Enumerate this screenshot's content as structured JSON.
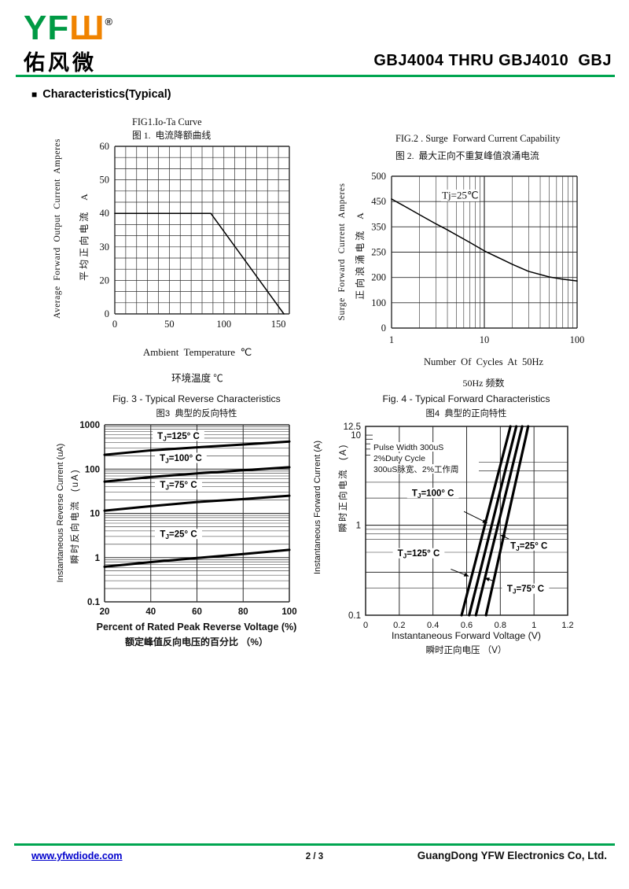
{
  "header": {
    "logo_text_left": "YF",
    "logo_text_right": "Ш",
    "logo_reg": "®",
    "logo_cn": "佑风微",
    "part_title": "GBJ4004 THRU GBJ4010  GBJ"
  },
  "section": {
    "bullet": "■",
    "heading": "Characteristics(Typical)"
  },
  "footer": {
    "website": "www.yfwdiode.com",
    "page": "2 / 3",
    "company": "GuangDong YFW Electronics Co, Ltd."
  },
  "colors": {
    "accent_green": "#00A550",
    "link_blue": "#0000CC",
    "ink": "#111111"
  },
  "chart_data": [
    {
      "id": "fig1",
      "type": "line",
      "title_en": "FIG1.Io-Ta Curve",
      "title_cn": "图 1.  电流降额曲线",
      "ylabel_en": "Average  Forward  Output  Current  Amperes",
      "ylabel_cn": "平均正向电流  A",
      "xlabel_en": "Ambient  Temperature  ℃",
      "xlabel_cn": "环境温度 ℃",
      "x_scale": "linear",
      "x_range": [
        0,
        160
      ],
      "x_grid_step": 10,
      "x_ticks": [
        "0",
        "50",
        "100",
        "150"
      ],
      "y_tick_labels": [
        "60",
        "50",
        "40",
        "30",
        "20",
        "0"
      ],
      "grid": true,
      "series": [
        {
          "name": "output-current-derating",
          "points": [
            [
              0,
              40
            ],
            [
              88,
              40
            ],
            [
              155,
              0
            ]
          ]
        }
      ]
    },
    {
      "id": "fig2",
      "type": "line",
      "title_en": "FIG.2 . Surge  Forward Current Capability",
      "title_cn": "图 2.  最大正向不重复峰值浪涌电流",
      "ylabel_en": "Surge  Forward  Current  Amperes",
      "ylabel_cn": "正向浪涌电流  A",
      "xlabel_en": "Number  Of  Cycles  At  50Hz",
      "xlabel_cn": "50Hz 频数",
      "x_scale": "log",
      "x_range": [
        1,
        100
      ],
      "x_ticks": [
        "1",
        "10",
        "100"
      ],
      "y_tick_labels": [
        "500",
        "450",
        "350",
        "250",
        "200",
        "100",
        "0"
      ],
      "annotation": "Tj=25℃",
      "annotation_at": [
        5.5,
        462
      ],
      "grid": true,
      "series": [
        {
          "name": "surge-current",
          "points": [
            [
              1,
              455
            ],
            [
              1.5,
              424
            ],
            [
              2,
              398
            ],
            [
              3,
              362
            ],
            [
              4,
              338
            ],
            [
              5,
              318
            ],
            [
              7,
              288
            ],
            [
              10,
              255
            ],
            [
              15,
              237
            ],
            [
              20,
              226
            ],
            [
              30,
              212
            ],
            [
              50,
              201
            ],
            [
              70,
              193
            ],
            [
              100,
              186
            ]
          ]
        }
      ]
    },
    {
      "id": "fig3",
      "type": "line",
      "title_en": "Fig. 3 - Typical Reverse Characteristics",
      "title_cn": "图3  典型的反向特性",
      "ylabel_en": "Instantaneous Reverse Current (uA)",
      "ylabel_cn": "瞬时反向电流  (uA)",
      "xlabel_en": "Percent of Rated Peak Reverse Voltage (%)",
      "xlabel_cn": "额定峰值反向电压的百分比 （%）",
      "x_scale": "linear",
      "x_range": [
        20,
        100
      ],
      "x_ticks": [
        "20",
        "40",
        "60",
        "80",
        "100"
      ],
      "y_scale": "log",
      "y_range": [
        0.1,
        1000
      ],
      "y_ticks": [
        "1000",
        "100",
        "10",
        "1",
        "0.1"
      ],
      "grid": true,
      "series": [
        {
          "name": "TJ=125° C",
          "points": [
            [
              20,
              210
            ],
            [
              40,
              265
            ],
            [
              60,
              310
            ],
            [
              80,
              360
            ],
            [
              100,
              420
            ]
          ],
          "label_at": [
            52,
            480
          ]
        },
        {
          "name": "TJ=100° C",
          "points": [
            [
              20,
              52
            ],
            [
              40,
              66
            ],
            [
              60,
              80
            ],
            [
              80,
              94
            ],
            [
              100,
              110
            ]
          ],
          "label_at": [
            53,
            152
          ]
        },
        {
          "name": "TJ=75° C",
          "points": [
            [
              20,
              11.5
            ],
            [
              40,
              14.5
            ],
            [
              60,
              18
            ],
            [
              80,
              21
            ],
            [
              100,
              25
            ]
          ],
          "label_at": [
            52,
            38
          ]
        },
        {
          "name": "TJ=25° C",
          "points": [
            [
              20,
              0.62
            ],
            [
              40,
              0.79
            ],
            [
              60,
              0.98
            ],
            [
              80,
              1.2
            ],
            [
              100,
              1.5
            ]
          ],
          "label_at": [
            52,
            2.9
          ]
        }
      ]
    },
    {
      "id": "fig4",
      "type": "line",
      "title_en": "Fig. 4 - Typical Forward Characteristics",
      "title_cn": "图4  典型的正向特性",
      "ylabel_en": "Instantaneous Forward Current (A)",
      "ylabel_cn": "瞬时正向电流  (A)",
      "xlabel_en": "Instantaneous Forward Voltage (V)",
      "xlabel_cn": "瞬时正向电压 （V）",
      "x_scale": "linear",
      "x_range": [
        0,
        1.2
      ],
      "x_ticks": [
        "0",
        "0.2",
        "0.4",
        "0.6",
        "0.8",
        "1",
        "1.2"
      ],
      "y_scale": "log",
      "y_range": [
        0.1,
        12.5
      ],
      "y_ticks": [
        {
          "label": "12.5",
          "value": 12.5
        },
        {
          "label": "10",
          "value": 10
        },
        {
          "label": "1",
          "value": 1
        },
        {
          "label": "0.1",
          "value": 0.1
        }
      ],
      "test_conditions": [
        "Pulse Width 300uS",
        "2%Duty Cycle",
        "300uS脉宽、2%工作周"
      ],
      "grid": true,
      "series": [
        {
          "name": "TJ=125° C",
          "points": [
            [
              0.57,
              0.1
            ],
            [
              0.636,
              0.3
            ],
            [
              0.708,
              1
            ],
            [
              0.774,
              3
            ],
            [
              0.847,
              10
            ],
            [
              0.86,
              12.5
            ]
          ],
          "label_at": [
            0.315,
            0.45
          ],
          "arrow_tip": [
            0.615,
            0.27
          ]
        },
        {
          "name": "TJ=100° C",
          "points": [
            [
              0.615,
              0.1
            ],
            [
              0.679,
              0.3
            ],
            [
              0.749,
              1
            ],
            [
              0.812,
              3
            ],
            [
              0.882,
              10
            ],
            [
              0.895,
              12.5
            ]
          ],
          "label_at": [
            0.4,
            2.1
          ],
          "arrow_tip": [
            0.725,
            1.05
          ]
        },
        {
          "name": "TJ=75° C",
          "points": [
            [
              0.655,
              0.1
            ],
            [
              0.717,
              0.3
            ],
            [
              0.786,
              1
            ],
            [
              0.849,
              3
            ],
            [
              0.917,
              10
            ],
            [
              0.93,
              12.5
            ]
          ],
          "label_at": [
            0.95,
            0.182
          ],
          "arrow_tip": [
            0.705,
            0.26
          ]
        },
        {
          "name": "TJ=25° C",
          "points": [
            [
              0.715,
              0.1
            ],
            [
              0.772,
              0.3
            ],
            [
              0.834,
              1
            ],
            [
              0.891,
              3
            ],
            [
              0.954,
              10
            ],
            [
              0.965,
              12.5
            ]
          ],
          "label_at": [
            0.97,
            0.55
          ],
          "arrow_tip": [
            0.8,
            0.78
          ]
        }
      ]
    }
  ]
}
